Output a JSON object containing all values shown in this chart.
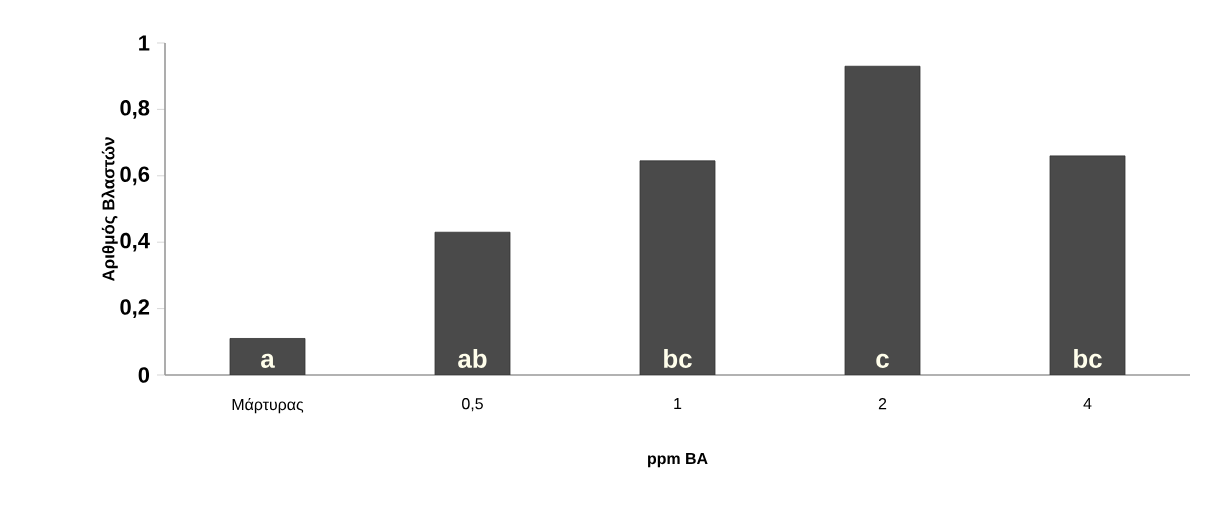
{
  "chart_data": {
    "type": "bar",
    "xlabel": "ppm BA",
    "ylabel": "Αριθμός Βλαστών",
    "categories": [
      "Μάρτυρας",
      "0,5",
      "1",
      "2",
      "4"
    ],
    "values": [
      0.11,
      0.43,
      0.645,
      0.93,
      0.66
    ],
    "color": "#4a4a4a",
    "ylim": [
      0,
      1
    ],
    "yticks": [
      0,
      {
        "value": 0.2,
        "label": "0,2"
      },
      {
        "value": 0.4,
        "label": "0,4"
      },
      {
        "value": 0.6,
        "label": "0,6"
      },
      {
        "value": 0.8,
        "label": "0,8"
      },
      1
    ],
    "annotations": [
      "a",
      "ab",
      "bc",
      "c",
      "bc"
    ]
  }
}
